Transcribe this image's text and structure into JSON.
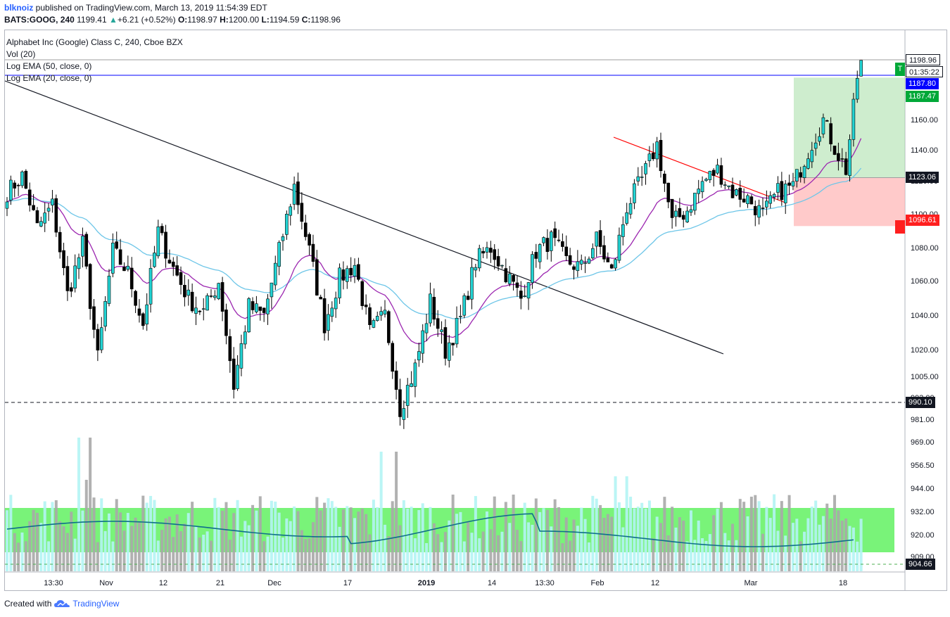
{
  "header": {
    "username": "blknoiz",
    "published_text": " published on TradingView.com, March 13, 2019 11:54:39 EDT",
    "symbol": "BATS:GOOG, 240",
    "last": "1199.41",
    "change_arrow": "▲",
    "change": "+6.21 (+0.52%)",
    "o_label": "O:",
    "o_value": "1198.97",
    "h_label": "H:",
    "h_value": "1200.00",
    "l_label": "L:",
    "l_value": "1194.59",
    "c_label": "C:",
    "c_value": "1198.96"
  },
  "legend": {
    "title": "Alphabet Inc (Google) Class C, 240, Cboe BZX",
    "vol": "Vol (20)",
    "ema50": "Log EMA (50, close, 0)",
    "ema20": "Log EMA (20, close, 0)"
  },
  "price_tags": {
    "last": "1198.96",
    "countdown": "01:35:22",
    "blue_line": "1187.80",
    "entry": "1187.47",
    "target_line": "1123.06",
    "stop": "1096.61",
    "support": "990.10",
    "volume_line": "904.66",
    "flag_top": "T",
    "flag_bottom": ""
  },
  "footer": {
    "created_with": "Created with",
    "brand": "TradingView",
    "logo_icon": "tradingview-cloud-icon"
  },
  "chart_data": {
    "type": "candlestick",
    "title": "",
    "y_scale": "log",
    "y_ticks": [
      "1160.00",
      "1140.00",
      "1120.00",
      "1100.00",
      "1080.00",
      "1060.00",
      "1040.00",
      "1020.00",
      "1005.00",
      "993.00",
      "981.00",
      "969.00",
      "956.50",
      "944.00",
      "932.00",
      "920.00",
      "909.00"
    ],
    "x_ticks": [
      "13:30",
      "Nov",
      "12",
      "21",
      "Dec",
      "17",
      "2019",
      "14",
      "13:30",
      "Feb",
      "12",
      "Mar",
      "18"
    ],
    "colors": {
      "up": "#22d3d3",
      "down": "#000000",
      "ema20": "#9c27b0",
      "ema50": "#6ec6e8",
      "trendline_long": "#131722",
      "trendline_short": "#ff0000",
      "vol_up": "#b2f4f4",
      "vol_down": "#a9a9a9",
      "vol_ma": "#0f6e8c",
      "vol_band": "#58f058",
      "target_zone": "#a5dea5",
      "stop_zone": "#ffb3b3"
    },
    "anchors": [
      {
        "i": 0,
        "c": 1114
      },
      {
        "i": 4,
        "c": 1124
      },
      {
        "i": 8,
        "c": 1092
      },
      {
        "i": 12,
        "c": 1106
      },
      {
        "i": 16,
        "c": 1052
      },
      {
        "i": 20,
        "c": 1082
      },
      {
        "i": 24,
        "c": 1015
      },
      {
        "i": 28,
        "c": 1078
      },
      {
        "i": 32,
        "c": 1065
      },
      {
        "i": 36,
        "c": 1035
      },
      {
        "i": 40,
        "c": 1090
      },
      {
        "i": 44,
        "c": 1068
      },
      {
        "i": 48,
        "c": 1050
      },
      {
        "i": 52,
        "c": 1042
      },
      {
        "i": 56,
        "c": 1060
      },
      {
        "i": 60,
        "c": 1000
      },
      {
        "i": 64,
        "c": 1045
      },
      {
        "i": 68,
        "c": 1040
      },
      {
        "i": 72,
        "c": 1078
      },
      {
        "i": 76,
        "c": 1118
      },
      {
        "i": 80,
        "c": 1078
      },
      {
        "i": 84,
        "c": 1035
      },
      {
        "i": 88,
        "c": 1062
      },
      {
        "i": 92,
        "c": 1070
      },
      {
        "i": 96,
        "c": 1030
      },
      {
        "i": 100,
        "c": 1040
      },
      {
        "i": 104,
        "c": 988
      },
      {
        "i": 108,
        "c": 1010
      },
      {
        "i": 112,
        "c": 1048
      },
      {
        "i": 116,
        "c": 1020
      },
      {
        "i": 120,
        "c": 1038
      },
      {
        "i": 124,
        "c": 1072
      },
      {
        "i": 128,
        "c": 1080
      },
      {
        "i": 132,
        "c": 1065
      },
      {
        "i": 136,
        "c": 1050
      },
      {
        "i": 140,
        "c": 1078
      },
      {
        "i": 144,
        "c": 1085
      },
      {
        "i": 148,
        "c": 1072
      },
      {
        "i": 152,
        "c": 1068
      },
      {
        "i": 156,
        "c": 1085
      },
      {
        "i": 160,
        "c": 1065
      },
      {
        "i": 164,
        "c": 1105
      },
      {
        "i": 168,
        "c": 1122
      },
      {
        "i": 172,
        "c": 1144
      },
      {
        "i": 176,
        "c": 1095
      },
      {
        "i": 180,
        "c": 1103
      },
      {
        "i": 184,
        "c": 1120
      },
      {
        "i": 188,
        "c": 1128
      },
      {
        "i": 192,
        "c": 1114
      },
      {
        "i": 196,
        "c": 1110
      },
      {
        "i": 200,
        "c": 1100
      },
      {
        "i": 204,
        "c": 1114
      },
      {
        "i": 208,
        "c": 1118
      },
      {
        "i": 212,
        "c": 1140
      },
      {
        "i": 216,
        "c": 1160
      },
      {
        "i": 219,
        "c": 1142
      },
      {
        "i": 222,
        "c": 1128
      },
      {
        "i": 225,
        "c": 1187
      },
      {
        "i": 226,
        "c": 1198.96
      }
    ]
  }
}
